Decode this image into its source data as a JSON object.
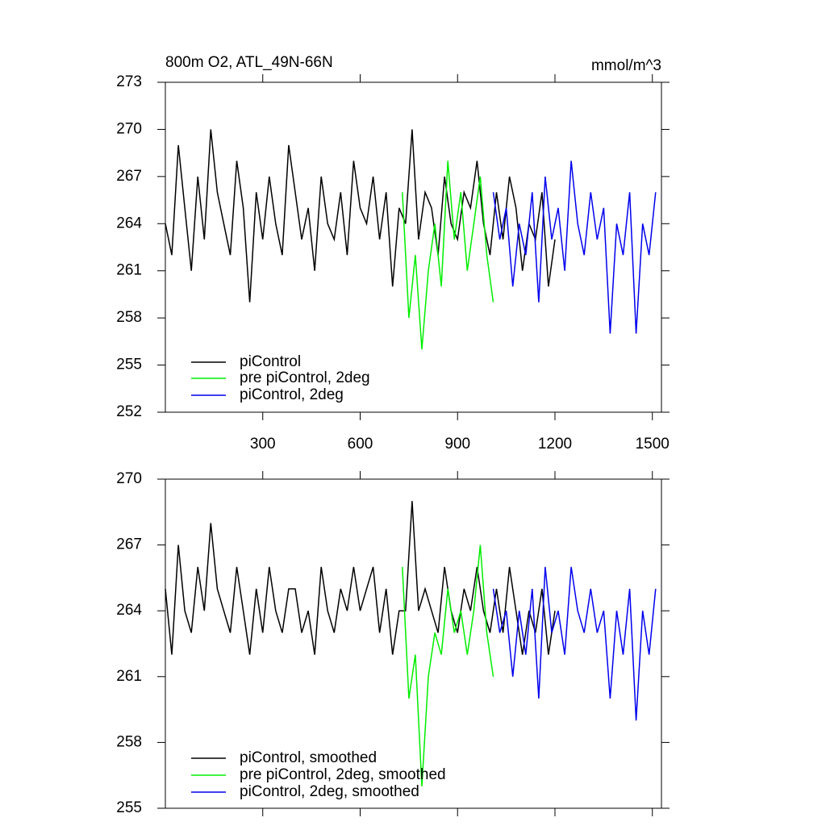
{
  "chart_data": [
    {
      "type": "line",
      "title": "800m O2, ATL_49N-66N",
      "units": "mmol/m^3",
      "xlim": [
        0,
        1528
      ],
      "xticks": [
        300,
        600,
        900,
        1200,
        1500
      ],
      "ylim": [
        252,
        273
      ],
      "yticks": [
        252,
        255,
        258,
        261,
        264,
        267,
        270,
        273
      ],
      "series": [
        {
          "name": "piControl",
          "color": "#000000",
          "x": [
            0,
            20,
            40,
            60,
            80,
            100,
            120,
            140,
            160,
            180,
            200,
            220,
            240,
            260,
            280,
            300,
            320,
            340,
            360,
            380,
            400,
            420,
            440,
            460,
            480,
            500,
            520,
            540,
            560,
            580,
            600,
            620,
            640,
            660,
            680,
            700,
            720,
            740,
            760,
            780,
            800,
            820,
            840,
            860,
            880,
            900,
            920,
            940,
            960,
            980,
            1000,
            1020,
            1040,
            1060,
            1080,
            1100,
            1120,
            1140,
            1160,
            1180,
            1200
          ],
          "values": [
            264,
            262,
            269,
            265,
            261,
            267,
            263,
            270,
            266,
            264,
            262,
            268,
            265,
            259,
            266,
            263,
            267,
            264,
            262,
            269,
            266,
            263,
            265,
            261,
            267,
            264,
            263,
            266,
            262,
            268,
            265,
            264,
            267,
            263,
            266,
            260,
            265,
            264,
            270,
            263,
            266,
            265,
            262,
            267,
            264,
            263,
            266,
            265,
            268,
            264,
            262,
            266,
            263,
            267,
            265,
            261,
            264,
            263,
            266,
            260,
            263
          ]
        },
        {
          "name": "pre piControl, 2deg",
          "color": "#00ee00",
          "x": [
            730,
            750,
            770,
            790,
            810,
            830,
            850,
            870,
            890,
            910,
            930,
            950,
            970,
            990,
            1010
          ],
          "values": [
            266,
            258,
            262,
            256,
            261,
            264,
            260,
            268,
            263,
            266,
            261,
            264,
            267,
            262,
            259
          ]
        },
        {
          "name": "piControl, 2deg",
          "color": "#0000ee",
          "x": [
            1010,
            1030,
            1050,
            1070,
            1090,
            1110,
            1130,
            1150,
            1170,
            1190,
            1210,
            1230,
            1250,
            1270,
            1290,
            1310,
            1330,
            1350,
            1370,
            1390,
            1410,
            1430,
            1450,
            1470,
            1490,
            1510
          ],
          "values": [
            266,
            263,
            265,
            260,
            264,
            262,
            266,
            259,
            267,
            263,
            265,
            261,
            268,
            264,
            262,
            266,
            263,
            265,
            257,
            264,
            262,
            266,
            257,
            264,
            262,
            266
          ]
        }
      ]
    },
    {
      "type": "line",
      "xlim": [
        0,
        1528
      ],
      "ylim": [
        255,
        270
      ],
      "yticks": [
        255,
        258,
        261,
        264,
        267,
        270
      ],
      "series": [
        {
          "name": "piControl, smoothed",
          "color": "#000000",
          "x": [
            0,
            20,
            40,
            60,
            80,
            100,
            120,
            140,
            160,
            180,
            200,
            220,
            240,
            260,
            280,
            300,
            320,
            340,
            360,
            380,
            400,
            420,
            440,
            460,
            480,
            500,
            520,
            540,
            560,
            580,
            600,
            620,
            640,
            660,
            680,
            700,
            720,
            740,
            760,
            780,
            800,
            820,
            840,
            860,
            880,
            900,
            920,
            940,
            960,
            980,
            1000,
            1020,
            1040,
            1060,
            1080,
            1100,
            1120,
            1140,
            1160,
            1180,
            1200
          ],
          "values": [
            265,
            262,
            267,
            264,
            263,
            266,
            264,
            268,
            265,
            264,
            263,
            266,
            264,
            262,
            265,
            263,
            266,
            264,
            263,
            265,
            265,
            263,
            264,
            262,
            266,
            264,
            263,
            265,
            264,
            266,
            264,
            265,
            266,
            263,
            265,
            262,
            264,
            264,
            269,
            264,
            265,
            264,
            263,
            266,
            264,
            263,
            265,
            264,
            266,
            264,
            263,
            265,
            263,
            266,
            264,
            262,
            264,
            263,
            265,
            262,
            264
          ]
        },
        {
          "name": "pre piControl, 2deg, smoothed",
          "color": "#00ee00",
          "x": [
            730,
            750,
            770,
            790,
            810,
            830,
            850,
            870,
            890,
            910,
            930,
            950,
            970,
            990,
            1010
          ],
          "values": [
            266,
            260,
            262,
            256,
            261,
            263,
            262,
            265,
            263,
            264,
            262,
            264,
            267,
            263,
            261
          ]
        },
        {
          "name": "piControl, 2deg, smoothed",
          "color": "#0000ee",
          "x": [
            1010,
            1030,
            1050,
            1070,
            1090,
            1110,
            1130,
            1150,
            1170,
            1190,
            1210,
            1230,
            1250,
            1270,
            1290,
            1310,
            1330,
            1350,
            1370,
            1390,
            1410,
            1430,
            1450,
            1470,
            1490,
            1510
          ],
          "values": [
            265,
            263,
            264,
            261,
            264,
            262,
            265,
            260,
            266,
            263,
            264,
            262,
            266,
            264,
            263,
            265,
            263,
            264,
            260,
            264,
            262,
            265,
            259,
            264,
            262,
            265
          ]
        }
      ]
    }
  ]
}
